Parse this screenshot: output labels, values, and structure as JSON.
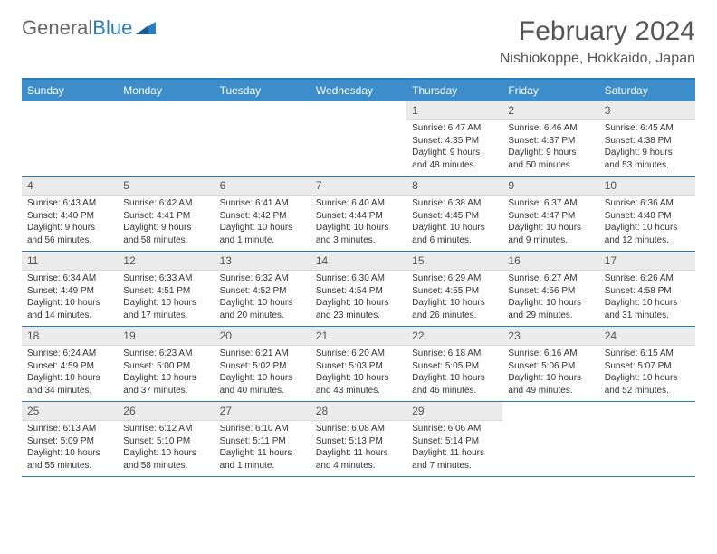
{
  "logo": {
    "text1": "General",
    "text2": "Blue"
  },
  "title": "February 2024",
  "location": "Nishiokoppe, Hokkaido, Japan",
  "colors": {
    "header_bg": "#3c8dca",
    "header_border": "#2b7bbf",
    "daynum_bg": "#ebebeb",
    "text": "#333333"
  },
  "day_names": [
    "Sunday",
    "Monday",
    "Tuesday",
    "Wednesday",
    "Thursday",
    "Friday",
    "Saturday"
  ],
  "weeks": [
    [
      null,
      null,
      null,
      null,
      {
        "n": "1",
        "sr": "Sunrise: 6:47 AM",
        "ss": "Sunset: 4:35 PM",
        "d1": "Daylight: 9 hours",
        "d2": "and 48 minutes."
      },
      {
        "n": "2",
        "sr": "Sunrise: 6:46 AM",
        "ss": "Sunset: 4:37 PM",
        "d1": "Daylight: 9 hours",
        "d2": "and 50 minutes."
      },
      {
        "n": "3",
        "sr": "Sunrise: 6:45 AM",
        "ss": "Sunset: 4:38 PM",
        "d1": "Daylight: 9 hours",
        "d2": "and 53 minutes."
      }
    ],
    [
      {
        "n": "4",
        "sr": "Sunrise: 6:43 AM",
        "ss": "Sunset: 4:40 PM",
        "d1": "Daylight: 9 hours",
        "d2": "and 56 minutes."
      },
      {
        "n": "5",
        "sr": "Sunrise: 6:42 AM",
        "ss": "Sunset: 4:41 PM",
        "d1": "Daylight: 9 hours",
        "d2": "and 58 minutes."
      },
      {
        "n": "6",
        "sr": "Sunrise: 6:41 AM",
        "ss": "Sunset: 4:42 PM",
        "d1": "Daylight: 10 hours",
        "d2": "and 1 minute."
      },
      {
        "n": "7",
        "sr": "Sunrise: 6:40 AM",
        "ss": "Sunset: 4:44 PM",
        "d1": "Daylight: 10 hours",
        "d2": "and 3 minutes."
      },
      {
        "n": "8",
        "sr": "Sunrise: 6:38 AM",
        "ss": "Sunset: 4:45 PM",
        "d1": "Daylight: 10 hours",
        "d2": "and 6 minutes."
      },
      {
        "n": "9",
        "sr": "Sunrise: 6:37 AM",
        "ss": "Sunset: 4:47 PM",
        "d1": "Daylight: 10 hours",
        "d2": "and 9 minutes."
      },
      {
        "n": "10",
        "sr": "Sunrise: 6:36 AM",
        "ss": "Sunset: 4:48 PM",
        "d1": "Daylight: 10 hours",
        "d2": "and 12 minutes."
      }
    ],
    [
      {
        "n": "11",
        "sr": "Sunrise: 6:34 AM",
        "ss": "Sunset: 4:49 PM",
        "d1": "Daylight: 10 hours",
        "d2": "and 14 minutes."
      },
      {
        "n": "12",
        "sr": "Sunrise: 6:33 AM",
        "ss": "Sunset: 4:51 PM",
        "d1": "Daylight: 10 hours",
        "d2": "and 17 minutes."
      },
      {
        "n": "13",
        "sr": "Sunrise: 6:32 AM",
        "ss": "Sunset: 4:52 PM",
        "d1": "Daylight: 10 hours",
        "d2": "and 20 minutes."
      },
      {
        "n": "14",
        "sr": "Sunrise: 6:30 AM",
        "ss": "Sunset: 4:54 PM",
        "d1": "Daylight: 10 hours",
        "d2": "and 23 minutes."
      },
      {
        "n": "15",
        "sr": "Sunrise: 6:29 AM",
        "ss": "Sunset: 4:55 PM",
        "d1": "Daylight: 10 hours",
        "d2": "and 26 minutes."
      },
      {
        "n": "16",
        "sr": "Sunrise: 6:27 AM",
        "ss": "Sunset: 4:56 PM",
        "d1": "Daylight: 10 hours",
        "d2": "and 29 minutes."
      },
      {
        "n": "17",
        "sr": "Sunrise: 6:26 AM",
        "ss": "Sunset: 4:58 PM",
        "d1": "Daylight: 10 hours",
        "d2": "and 31 minutes."
      }
    ],
    [
      {
        "n": "18",
        "sr": "Sunrise: 6:24 AM",
        "ss": "Sunset: 4:59 PM",
        "d1": "Daylight: 10 hours",
        "d2": "and 34 minutes."
      },
      {
        "n": "19",
        "sr": "Sunrise: 6:23 AM",
        "ss": "Sunset: 5:00 PM",
        "d1": "Daylight: 10 hours",
        "d2": "and 37 minutes."
      },
      {
        "n": "20",
        "sr": "Sunrise: 6:21 AM",
        "ss": "Sunset: 5:02 PM",
        "d1": "Daylight: 10 hours",
        "d2": "and 40 minutes."
      },
      {
        "n": "21",
        "sr": "Sunrise: 6:20 AM",
        "ss": "Sunset: 5:03 PM",
        "d1": "Daylight: 10 hours",
        "d2": "and 43 minutes."
      },
      {
        "n": "22",
        "sr": "Sunrise: 6:18 AM",
        "ss": "Sunset: 5:05 PM",
        "d1": "Daylight: 10 hours",
        "d2": "and 46 minutes."
      },
      {
        "n": "23",
        "sr": "Sunrise: 6:16 AM",
        "ss": "Sunset: 5:06 PM",
        "d1": "Daylight: 10 hours",
        "d2": "and 49 minutes."
      },
      {
        "n": "24",
        "sr": "Sunrise: 6:15 AM",
        "ss": "Sunset: 5:07 PM",
        "d1": "Daylight: 10 hours",
        "d2": "and 52 minutes."
      }
    ],
    [
      {
        "n": "25",
        "sr": "Sunrise: 6:13 AM",
        "ss": "Sunset: 5:09 PM",
        "d1": "Daylight: 10 hours",
        "d2": "and 55 minutes."
      },
      {
        "n": "26",
        "sr": "Sunrise: 6:12 AM",
        "ss": "Sunset: 5:10 PM",
        "d1": "Daylight: 10 hours",
        "d2": "and 58 minutes."
      },
      {
        "n": "27",
        "sr": "Sunrise: 6:10 AM",
        "ss": "Sunset: 5:11 PM",
        "d1": "Daylight: 11 hours",
        "d2": "and 1 minute."
      },
      {
        "n": "28",
        "sr": "Sunrise: 6:08 AM",
        "ss": "Sunset: 5:13 PM",
        "d1": "Daylight: 11 hours",
        "d2": "and 4 minutes."
      },
      {
        "n": "29",
        "sr": "Sunrise: 6:06 AM",
        "ss": "Sunset: 5:14 PM",
        "d1": "Daylight: 11 hours",
        "d2": "and 7 minutes."
      },
      null,
      null
    ]
  ]
}
